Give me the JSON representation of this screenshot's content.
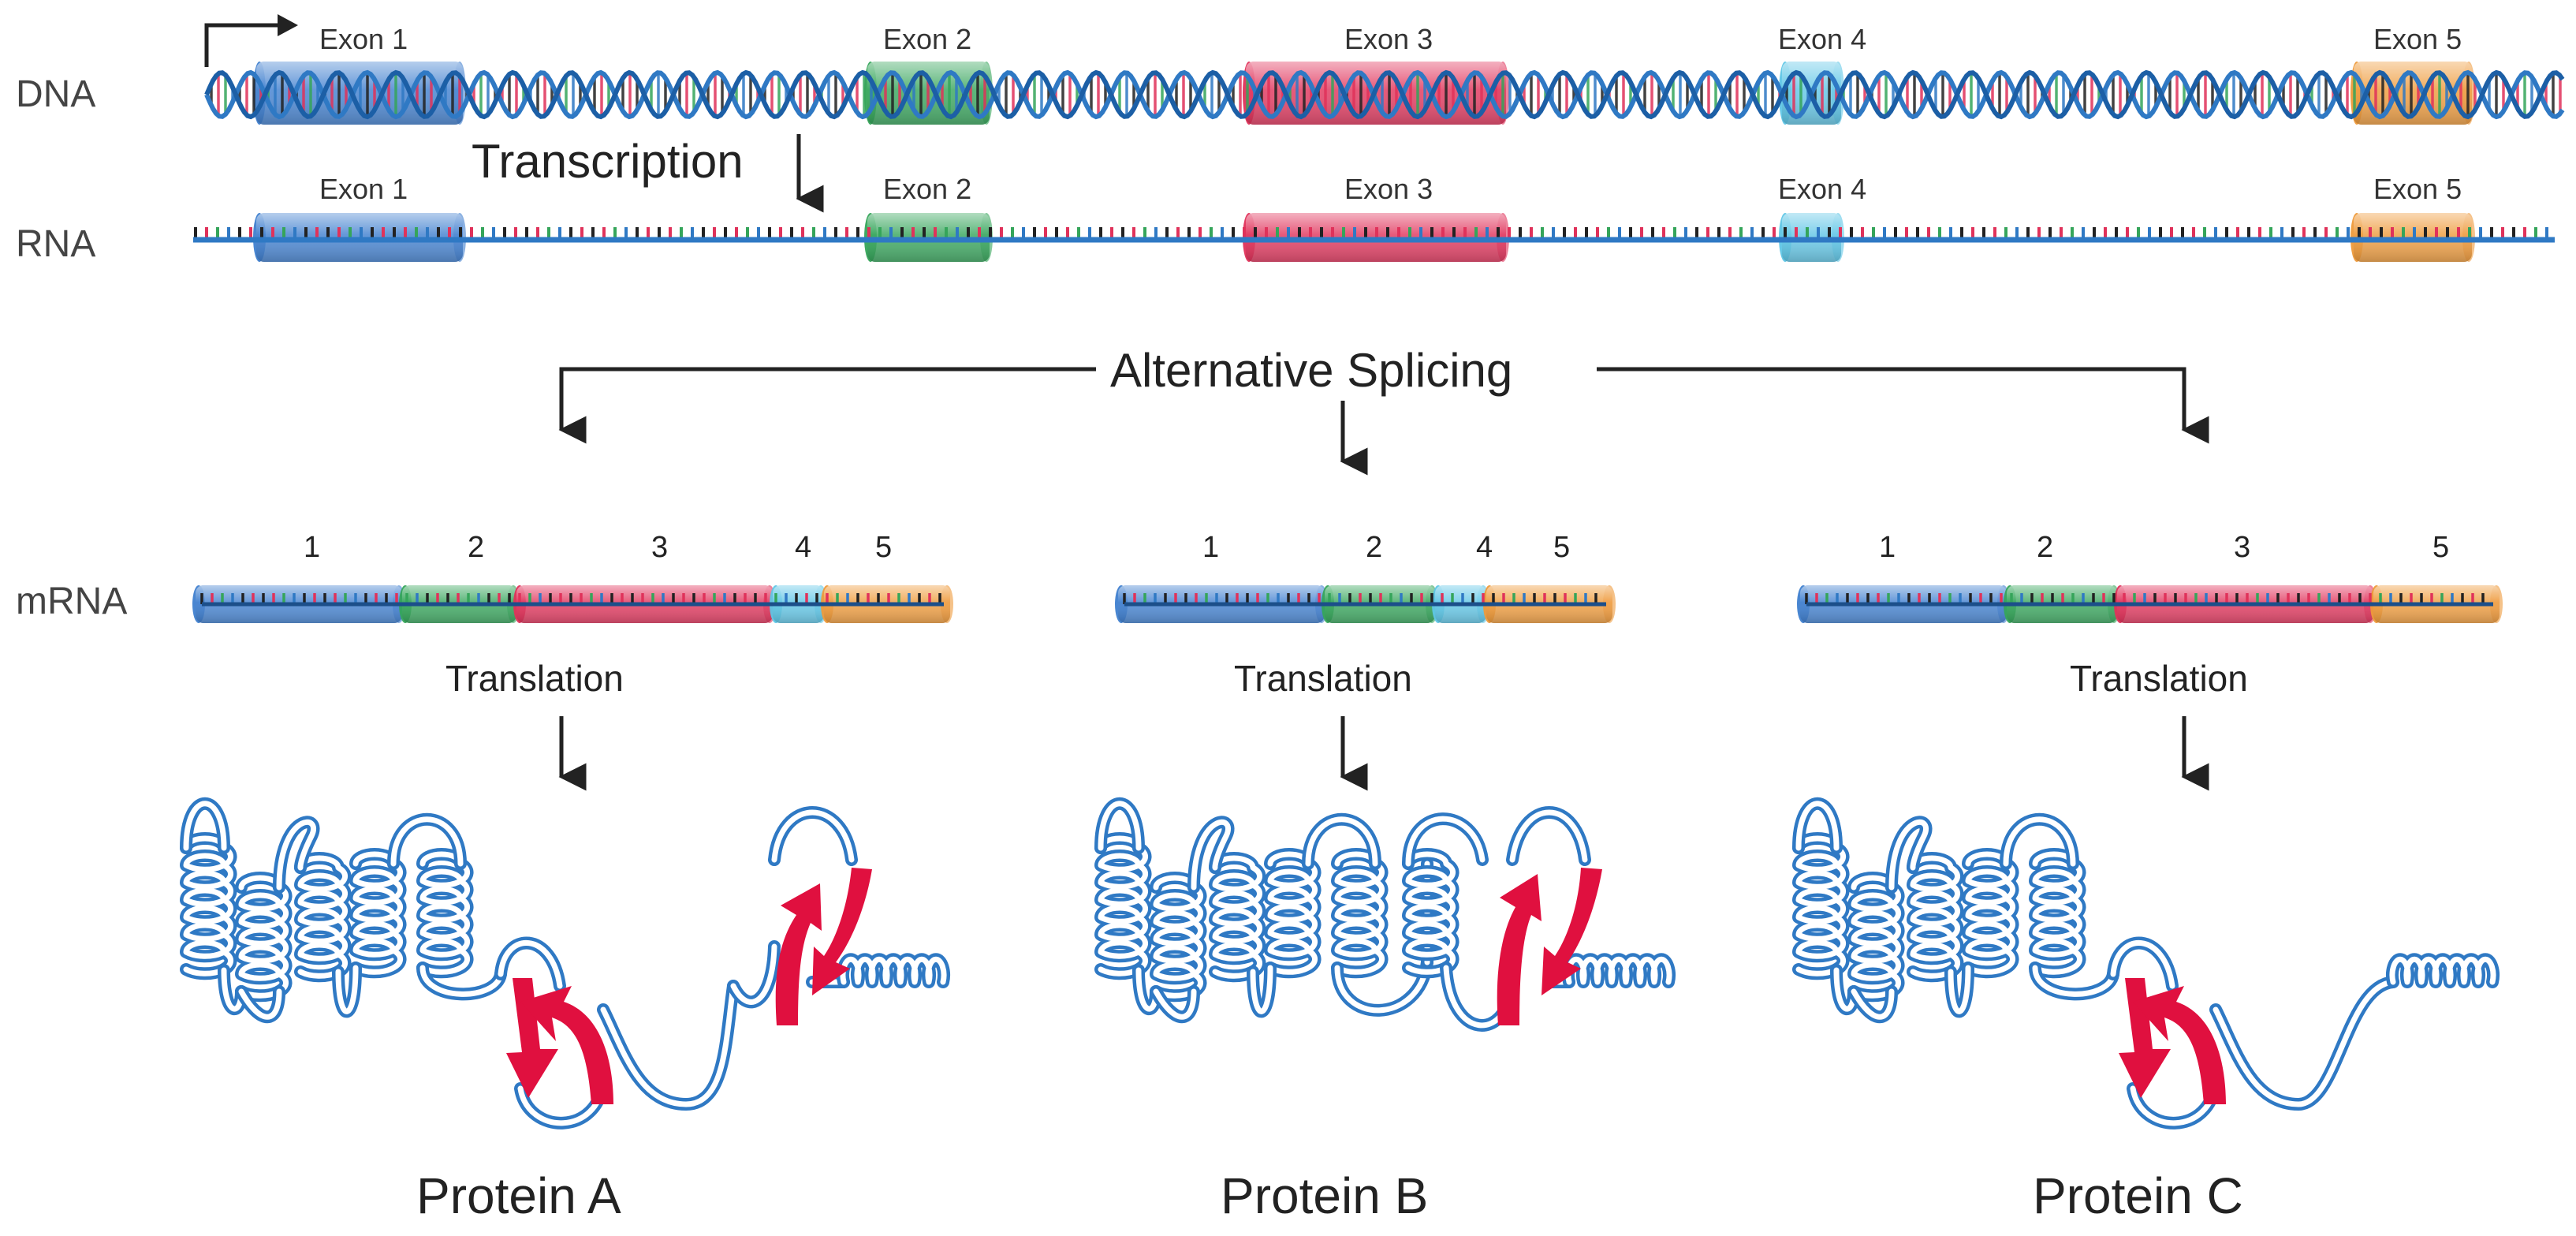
{
  "labels": {
    "dna": "DNA",
    "rna": "RNA",
    "mrna": "mRNA",
    "transcription": "Transcription",
    "alternative_splicing": "Alternative Splicing",
    "translation": "Translation"
  },
  "exon_word": "Exon",
  "exons": [
    {
      "num": "1",
      "color": "#3f7fcf"
    },
    {
      "num": "2",
      "color": "#35a55a"
    },
    {
      "num": "3",
      "color": "#e0325a"
    },
    {
      "num": "4",
      "color": "#5fc6e6"
    },
    {
      "num": "5",
      "color": "#ee9a3a"
    }
  ],
  "isoforms": [
    {
      "protein": "Protein A",
      "exon_numbers": [
        "1",
        "2",
        "3",
        "4",
        "5"
      ]
    },
    {
      "protein": "Protein B",
      "exon_numbers": [
        "1",
        "2",
        "4",
        "5"
      ]
    },
    {
      "protein": "Protein C",
      "exon_numbers": [
        "1",
        "2",
        "3",
        "5"
      ]
    }
  ],
  "colors": {
    "strand": "#2f79c4",
    "protein": "#2f79c4",
    "beta_strand": "#e0103f",
    "text": "#222222"
  }
}
